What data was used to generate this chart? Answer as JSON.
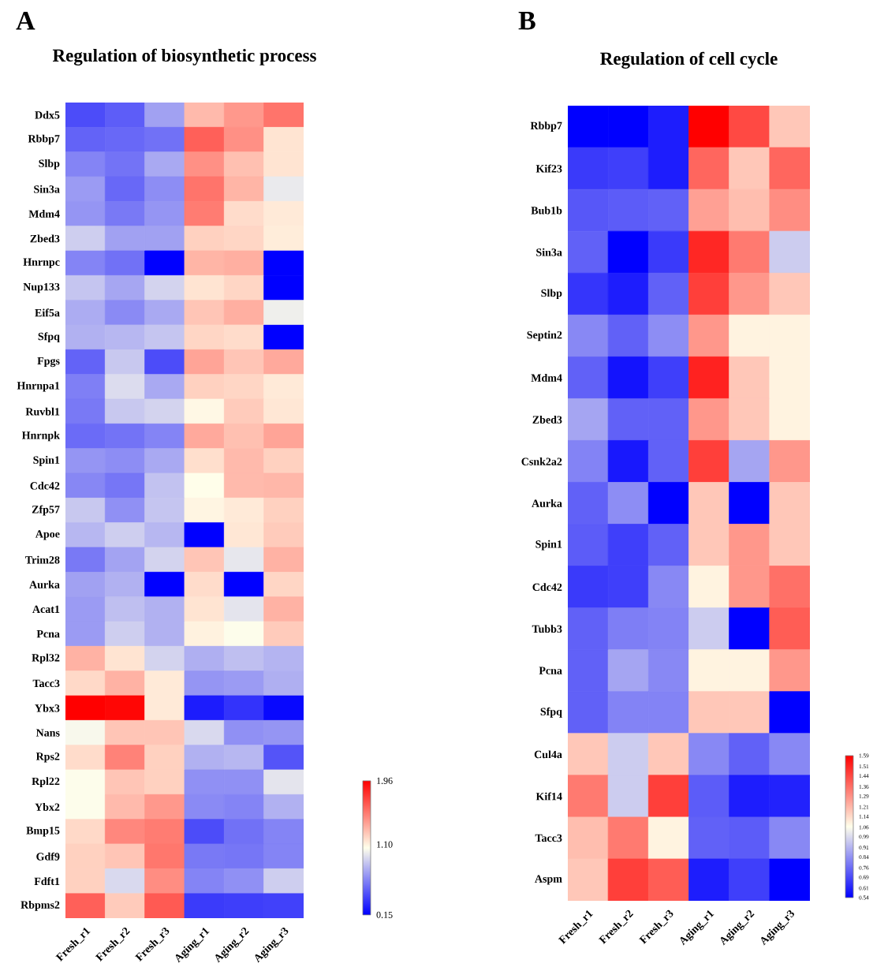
{
  "chart_data": [
    {
      "type": "heatmap",
      "title": "Regulation of biosynthetic process",
      "annotations": [
        "A"
      ],
      "categories": [
        "Fresh_r1",
        "Fresh_r2",
        "Fresh_r3",
        "Aging_r1",
        "Aging_r2",
        "Aging_r3"
      ],
      "y_categories": [
        "Ddx5",
        "Rbbp7",
        "Slbp",
        "Sin3a",
        "Mdm4",
        "Zbed3",
        "Hnrnpc",
        "Nup133",
        "Eif5a",
        "Sfpq",
        "Fpgs",
        "Hnrnpa1",
        "Ruvbl1",
        "Hnrnpk",
        "Spin1",
        "Cdc42",
        "Zfp57",
        "Apoe",
        "Trim28",
        "Aurka",
        "Acat1",
        "Pcna",
        "Rpl32",
        "Tacc3",
        "Ybx3",
        "Nans",
        "Rps2",
        "Rpl22",
        "Ybx2",
        "Bmp15",
        "Gdf9",
        "Fdft1",
        "Rbpms2"
      ],
      "cells": [
        [
          0.42,
          0.48,
          0.72,
          1.3,
          1.42,
          1.55
        ],
        [
          0.5,
          0.52,
          0.55,
          1.62,
          1.45,
          1.15
        ],
        [
          0.62,
          0.56,
          0.75,
          1.45,
          1.28,
          1.15
        ],
        [
          0.7,
          0.52,
          0.65,
          1.55,
          1.32,
          0.98
        ],
        [
          0.68,
          0.58,
          0.68,
          1.52,
          1.18,
          1.13
        ],
        [
          0.88,
          0.72,
          0.72,
          1.22,
          1.2,
          1.12
        ],
        [
          0.62,
          0.55,
          0.15,
          1.32,
          1.34,
          0.15
        ],
        [
          0.85,
          0.74,
          0.9,
          1.15,
          1.2,
          0.15
        ],
        [
          0.76,
          0.64,
          0.75,
          1.26,
          1.34,
          1.0
        ],
        [
          0.78,
          0.8,
          0.85,
          1.2,
          1.18,
          0.15
        ],
        [
          0.5,
          0.86,
          0.42,
          1.38,
          1.26,
          1.36
        ],
        [
          0.6,
          0.93,
          0.75,
          1.22,
          1.2,
          1.13
        ],
        [
          0.58,
          0.86,
          0.9,
          1.08,
          1.24,
          1.14
        ],
        [
          0.53,
          0.56,
          0.62,
          1.36,
          1.28,
          1.38
        ],
        [
          0.68,
          0.65,
          0.75,
          1.17,
          1.3,
          1.22
        ],
        [
          0.63,
          0.57,
          0.84,
          1.06,
          1.3,
          1.31
        ],
        [
          0.86,
          0.66,
          0.85,
          1.09,
          1.13,
          1.22
        ],
        [
          0.8,
          0.88,
          0.8,
          0.15,
          1.14,
          1.24
        ],
        [
          0.58,
          0.73,
          0.9,
          1.26,
          0.97,
          1.33
        ],
        [
          0.72,
          0.78,
          0.15,
          1.18,
          0.15,
          1.2
        ],
        [
          0.7,
          0.83,
          0.78,
          1.15,
          0.96,
          1.33
        ],
        [
          0.7,
          0.88,
          0.78,
          1.1,
          1.05,
          1.24
        ],
        [
          1.33,
          1.15,
          0.9,
          0.77,
          0.83,
          0.79
        ],
        [
          1.19,
          1.33,
          1.13,
          0.68,
          0.7,
          0.77
        ],
        [
          1.96,
          1.94,
          1.13,
          0.25,
          0.33,
          0.18
        ],
        [
          1.03,
          1.26,
          1.26,
          0.92,
          0.66,
          0.68
        ],
        [
          1.18,
          1.5,
          1.22,
          0.78,
          0.8,
          0.45
        ],
        [
          1.05,
          1.26,
          1.22,
          0.66,
          0.66,
          0.96
        ],
        [
          1.05,
          1.3,
          1.42,
          0.64,
          0.62,
          0.78
        ],
        [
          1.19,
          1.48,
          1.52,
          0.42,
          0.55,
          0.62
        ],
        [
          1.22,
          1.26,
          1.54,
          0.58,
          0.57,
          0.62
        ],
        [
          1.22,
          0.92,
          1.46,
          0.62,
          0.66,
          0.88
        ],
        [
          1.62,
          1.24,
          1.64,
          0.36,
          0.37,
          0.38
        ]
      ],
      "clim": [
        0.15,
        1.96
      ],
      "cticks": [
        0.15,
        {
          "value": 1.1,
          "label": "1.10"
        },
        1.96
      ]
    },
    {
      "type": "heatmap",
      "title": "Regulation of cell cycle",
      "annotations": [
        "B"
      ],
      "categories": [
        "Fresh_r1",
        "Fresh_r2",
        "Fresh_r3",
        "Aging_r1",
        "Aging_r2",
        "Aging_r3"
      ],
      "y_categories": [
        "Rbbp7",
        "Kif23",
        "Bub1b",
        "Sin3a",
        "Slbp",
        "Septin2",
        "Mdm4",
        "Zbed3",
        "Csnk2a2",
        "Aurka",
        "Spin1",
        "Cdc42",
        "Tubb3",
        "Pcna",
        "Sfpq",
        "Cul4a",
        "Kif14",
        "Tacc3",
        "Aspm"
      ],
      "cells": [
        [
          0.54,
          0.54,
          0.6,
          1.59,
          1.44,
          1.18
        ],
        [
          0.66,
          0.67,
          0.6,
          1.38,
          1.18,
          1.38
        ],
        [
          0.72,
          0.73,
          0.74,
          1.26,
          1.2,
          1.3
        ],
        [
          0.74,
          0.54,
          0.66,
          1.51,
          1.34,
          0.96
        ],
        [
          0.65,
          0.6,
          0.74,
          1.46,
          1.28,
          1.18
        ],
        [
          0.82,
          0.74,
          0.83,
          1.28,
          1.09,
          1.09
        ],
        [
          0.74,
          0.58,
          0.67,
          1.52,
          1.18,
          1.09
        ],
        [
          0.88,
          0.74,
          0.74,
          1.28,
          1.18,
          1.09
        ],
        [
          0.81,
          0.59,
          0.74,
          1.46,
          0.88,
          1.28
        ],
        [
          0.74,
          0.83,
          0.54,
          1.18,
          0.54,
          1.18
        ],
        [
          0.73,
          0.67,
          0.74,
          1.18,
          1.28,
          1.18
        ],
        [
          0.66,
          0.67,
          0.82,
          1.09,
          1.28,
          1.36
        ],
        [
          0.74,
          0.8,
          0.81,
          0.96,
          0.54,
          1.4
        ],
        [
          0.74,
          0.88,
          0.82,
          1.09,
          1.09,
          1.28
        ],
        [
          0.74,
          0.81,
          0.81,
          1.18,
          1.18,
          0.54
        ],
        [
          1.18,
          0.96,
          1.18,
          0.82,
          0.74,
          0.82
        ],
        [
          1.34,
          0.96,
          1.46,
          0.73,
          0.6,
          0.61
        ],
        [
          1.2,
          1.34,
          1.09,
          0.74,
          0.73,
          0.82
        ],
        [
          1.18,
          1.46,
          1.4,
          0.6,
          0.67,
          0.54
        ]
      ],
      "clim": [
        0.54,
        1.59
      ],
      "cticks": [
        0.54,
        0.61,
        0.69,
        0.76,
        0.84,
        0.91,
        0.99,
        1.06,
        1.14,
        1.21,
        1.29,
        1.36,
        1.44,
        1.51,
        1.59
      ]
    }
  ]
}
